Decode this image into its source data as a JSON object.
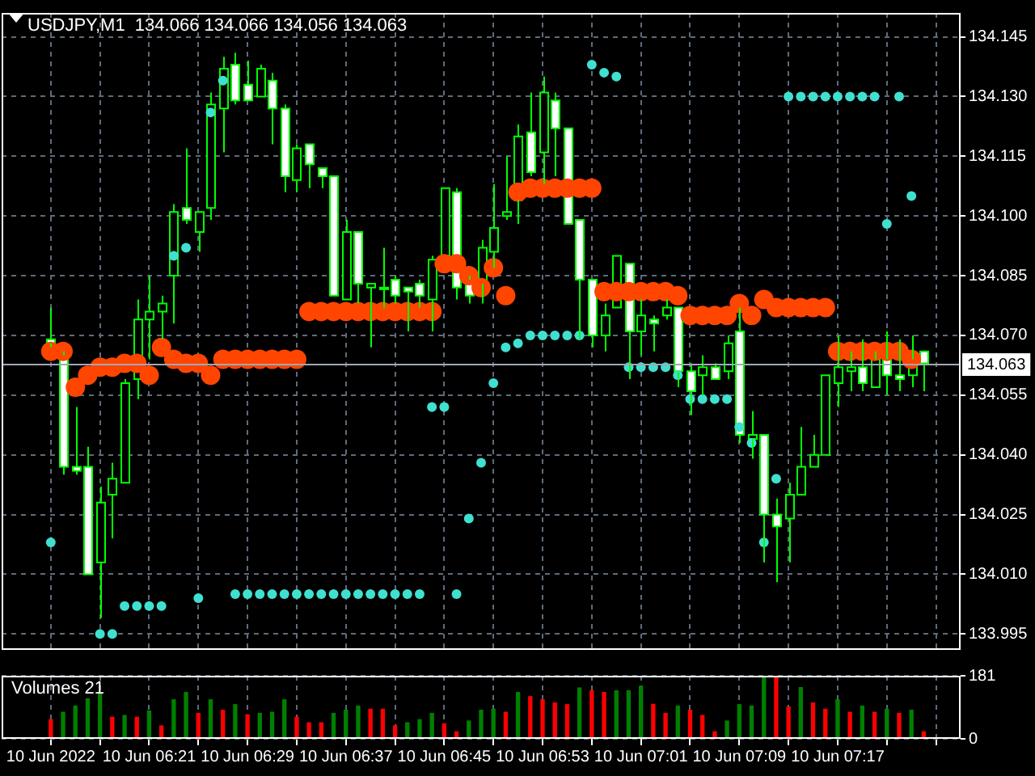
{
  "chart_data": [
    {
      "type": "candlestick",
      "title": "USDJPY,M1  134.066 134.066 134.056 134.063",
      "x": [
        "2022-06-10T06:13",
        "2022-06-10T06:14",
        "2022-06-10T06:15",
        "2022-06-10T06:16",
        "2022-06-10T06:17",
        "2022-06-10T06:18",
        "2022-06-10T06:19",
        "2022-06-10T06:20",
        "2022-06-10T06:21",
        "2022-06-10T06:22",
        "2022-06-10T06:23",
        "2022-06-10T06:24",
        "2022-06-10T06:25",
        "2022-06-10T06:26",
        "2022-06-10T06:27",
        "2022-06-10T06:28",
        "2022-06-10T06:29",
        "2022-06-10T06:30",
        "2022-06-10T06:31",
        "2022-06-10T06:32",
        "2022-06-10T06:33",
        "2022-06-10T06:34",
        "2022-06-10T06:35",
        "2022-06-10T06:36",
        "2022-06-10T06:37",
        "2022-06-10T06:38",
        "2022-06-10T06:39",
        "2022-06-10T06:40",
        "2022-06-10T06:41",
        "2022-06-10T06:42",
        "2022-06-10T06:43",
        "2022-06-10T06:44",
        "2022-06-10T06:45",
        "2022-06-10T06:46",
        "2022-06-10T06:47",
        "2022-06-10T06:48",
        "2022-06-10T06:49",
        "2022-06-10T06:50",
        "2022-06-10T06:51",
        "2022-06-10T06:52",
        "2022-06-10T06:53",
        "2022-06-10T06:54",
        "2022-06-10T06:55",
        "2022-06-10T06:56",
        "2022-06-10T06:57",
        "2022-06-10T06:58",
        "2022-06-10T06:59",
        "2022-06-10T07:00",
        "2022-06-10T07:01",
        "2022-06-10T07:02",
        "2022-06-10T07:03",
        "2022-06-10T07:04",
        "2022-06-10T07:05",
        "2022-06-10T07:06",
        "2022-06-10T07:07",
        "2022-06-10T07:08",
        "2022-06-10T07:09",
        "2022-06-10T07:10",
        "2022-06-10T07:11",
        "2022-06-10T07:12",
        "2022-06-10T07:13",
        "2022-06-10T07:14",
        "2022-06-10T07:15",
        "2022-06-10T07:16",
        "2022-06-10T07:17",
        "2022-06-10T07:18",
        "2022-06-10T07:19",
        "2022-06-10T07:20",
        "2022-06-10T07:21",
        "2022-06-10T07:22",
        "2022-06-10T07:23",
        "2022-06-10T07:24"
      ],
      "ohlc": [
        [
          134.069,
          134.077,
          134.067,
          134.068
        ],
        [
          134.065,
          134.066,
          134.035,
          134.037
        ],
        [
          134.037,
          134.052,
          134.035,
          134.036
        ],
        [
          134.037,
          134.042,
          134.01,
          134.01
        ],
        [
          134.013,
          134.032,
          133.999,
          134.028
        ],
        [
          134.03,
          134.038,
          134.019,
          134.034
        ],
        [
          134.033,
          134.059,
          134.033,
          134.058
        ],
        [
          134.059,
          134.079,
          134.054,
          134.074
        ],
        [
          134.074,
          134.085,
          134.064,
          134.076
        ],
        [
          134.076,
          134.08,
          134.069,
          134.078
        ],
        [
          134.085,
          134.103,
          134.073,
          134.101
        ],
        [
          134.102,
          134.117,
          134.098,
          134.099
        ],
        [
          134.096,
          134.101,
          134.091,
          134.101
        ],
        [
          134.102,
          134.131,
          134.099,
          134.128
        ],
        [
          134.127,
          134.14,
          134.116,
          134.137
        ],
        [
          134.138,
          134.141,
          134.128,
          134.129
        ],
        [
          134.133,
          134.139,
          134.129,
          134.129
        ],
        [
          134.13,
          134.138,
          134.13,
          134.137
        ],
        [
          134.134,
          134.136,
          134.118,
          134.127
        ],
        [
          134.127,
          134.128,
          134.106,
          134.11
        ],
        [
          134.109,
          134.118,
          134.106,
          134.117
        ],
        [
          134.118,
          134.118,
          134.107,
          134.113
        ],
        [
          134.112,
          134.112,
          134.107,
          134.11
        ],
        [
          134.11,
          134.11,
          134.08,
          134.08
        ],
        [
          134.079,
          134.099,
          134.079,
          134.096
        ],
        [
          134.096,
          134.096,
          134.078,
          134.083
        ],
        [
          134.082,
          134.083,
          134.067,
          134.083
        ],
        [
          134.082,
          134.092,
          134.077,
          134.082
        ],
        [
          134.084,
          134.085,
          134.078,
          134.08
        ],
        [
          134.082,
          134.082,
          134.071,
          134.081
        ],
        [
          134.083,
          134.084,
          134.077,
          134.08
        ],
        [
          134.079,
          134.09,
          134.071,
          134.089
        ],
        [
          134.09,
          134.107,
          134.09,
          134.107
        ],
        [
          134.106,
          134.107,
          134.079,
          134.082
        ],
        [
          134.084,
          134.085,
          134.078,
          134.08
        ],
        [
          134.083,
          134.094,
          134.078,
          134.092
        ],
        [
          134.091,
          134.108,
          134.087,
          134.097
        ],
        [
          134.1,
          134.115,
          134.099,
          134.101
        ],
        [
          134.104,
          134.123,
          134.098,
          134.12
        ],
        [
          134.121,
          134.131,
          134.11,
          134.111
        ],
        [
          134.116,
          134.135,
          134.108,
          134.131
        ],
        [
          134.129,
          134.131,
          134.11,
          134.122
        ],
        [
          134.122,
          134.122,
          134.098,
          134.098
        ],
        [
          134.099,
          134.099,
          134.069,
          134.084
        ],
        [
          134.084,
          134.084,
          134.067,
          134.07
        ],
        [
          134.07,
          134.078,
          134.066,
          134.075
        ],
        [
          134.077,
          134.09,
          134.077,
          134.09
        ],
        [
          134.088,
          134.088,
          134.059,
          134.071
        ],
        [
          134.071,
          134.079,
          134.065,
          134.075
        ],
        [
          134.074,
          134.075,
          134.066,
          134.073
        ],
        [
          134.075,
          134.079,
          134.074,
          134.077
        ],
        [
          134.077,
          134.077,
          134.057,
          134.061
        ],
        [
          134.061,
          134.063,
          134.05,
          134.056
        ],
        [
          134.06,
          134.065,
          134.055,
          134.062
        ],
        [
          134.062,
          134.063,
          134.059,
          134.059
        ],
        [
          134.061,
          134.07,
          134.059,
          134.068
        ],
        [
          134.071,
          134.077,
          134.043,
          134.045
        ],
        [
          134.044,
          134.051,
          134.039,
          134.045
        ],
        [
          134.045,
          134.045,
          134.013,
          134.025
        ],
        [
          134.025,
          134.029,
          134.008,
          134.022
        ],
        [
          134.024,
          134.033,
          134.013,
          134.03
        ],
        [
          134.03,
          134.047,
          134.03,
          134.037
        ],
        [
          134.037,
          134.045,
          134.037,
          134.04
        ],
        [
          134.04,
          134.06,
          134.04,
          134.06
        ],
        [
          134.058,
          134.07,
          134.052,
          134.062
        ],
        [
          134.061,
          134.066,
          134.056,
          134.062
        ],
        [
          134.062,
          134.069,
          134.056,
          134.058
        ],
        [
          134.057,
          134.066,
          134.057,
          134.064
        ],
        [
          134.064,
          134.071,
          134.055,
          134.06
        ],
        [
          134.06,
          134.069,
          134.056,
          134.059
        ],
        [
          134.06,
          134.07,
          134.057,
          134.064
        ],
        [
          134.066,
          134.066,
          134.056,
          134.063
        ]
      ],
      "series": [
        {
          "type": "scatter",
          "color": "#ff4500",
          "values": [
            134.066,
            134.066,
            134.057,
            134.06,
            134.062,
            134.062,
            134.063,
            134.063,
            134.06,
            134.067,
            134.064,
            134.063,
            134.063,
            134.06,
            134.064,
            134.064,
            134.064,
            134.064,
            134.064,
            134.064,
            134.064,
            134.076,
            134.076,
            134.076,
            134.076,
            134.076,
            134.076,
            134.076,
            134.076,
            134.076,
            134.076,
            134.076,
            134.088,
            134.088,
            134.085,
            134.082,
            134.087,
            134.08,
            134.106,
            134.107,
            134.107,
            134.107,
            134.107,
            134.107,
            134.107,
            134.081,
            134.081,
            134.081,
            134.081,
            134.081,
            134.081,
            134.08,
            134.075,
            134.075,
            134.075,
            134.075,
            134.078,
            134.075,
            134.079,
            134.077,
            134.077,
            134.077,
            134.077,
            134.077,
            134.066,
            134.066,
            134.066,
            134.066,
            134.066,
            134.066,
            134.064,
            null
          ]
        },
        {
          "type": "scatter",
          "color": "#40e0d0",
          "values": [
            134.018,
            null,
            null,
            null,
            133.995,
            133.995,
            134.002,
            134.002,
            134.002,
            134.002,
            134.09,
            134.092,
            134.004,
            134.126,
            134.134,
            134.005,
            134.005,
            134.005,
            134.005,
            134.005,
            134.005,
            134.005,
            134.005,
            134.005,
            134.005,
            134.005,
            134.005,
            134.005,
            134.005,
            134.005,
            134.005,
            134.052,
            134.052,
            134.005,
            134.024,
            134.038,
            134.058,
            134.067,
            134.068,
            134.07,
            134.07,
            134.07,
            134.07,
            134.07,
            134.138,
            134.136,
            134.135,
            134.062,
            134.062,
            134.062,
            134.062,
            134.06,
            134.054,
            134.054,
            134.054,
            134.054,
            134.047,
            134.043,
            134.018,
            134.034,
            134.13,
            134.13,
            134.13,
            134.13,
            134.13,
            134.13,
            134.13,
            134.13,
            134.098,
            134.13,
            134.105,
            null
          ]
        }
      ],
      "marker": "circle",
      "xlim": [
        "2022-06-10T06:09",
        "2022-06-10T07:27"
      ],
      "xticks": [
        {
          "value": "2022-06-10T06:13",
          "label": null
        },
        {
          "value": "2022-06-10T06:17",
          "label": null
        },
        {
          "value": "2022-06-10T06:21",
          "label": null
        },
        {
          "value": "2022-06-10T06:25",
          "label": null
        },
        {
          "value": "2022-06-10T06:29",
          "label": null
        },
        {
          "value": "2022-06-10T06:33",
          "label": null
        },
        {
          "value": "2022-06-10T06:37",
          "label": null
        },
        {
          "value": "2022-06-10T06:41",
          "label": null
        },
        {
          "value": "2022-06-10T06:45",
          "label": null
        },
        {
          "value": "2022-06-10T06:49",
          "label": null
        },
        {
          "value": "2022-06-10T06:53",
          "label": null
        },
        {
          "value": "2022-06-10T06:57",
          "label": null
        },
        {
          "value": "2022-06-10T07:01",
          "label": null
        },
        {
          "value": "2022-06-10T07:05",
          "label": null
        },
        {
          "value": "2022-06-10T07:09",
          "label": null
        },
        {
          "value": "2022-06-10T07:13",
          "label": null
        },
        {
          "value": "2022-06-10T07:17",
          "label": null
        },
        {
          "value": "2022-06-10T07:21",
          "label": null
        },
        {
          "value": "2022-06-10T07:25",
          "label": null
        }
      ],
      "ylim": [
        133.991,
        134.151
      ],
      "yticks": [
        133.995,
        {
          "value": 134.01,
          "label": "134.010"
        },
        134.025,
        {
          "value": 134.04,
          "label": "134.040"
        },
        134.055,
        {
          "value": 134.07,
          "label": "134.070"
        },
        134.085,
        {
          "value": 134.1,
          "label": "134.100"
        },
        134.115,
        {
          "value": 134.13,
          "label": "134.130"
        },
        134.145
      ],
      "ref_lines": [
        {
          "axis": "y",
          "value": 134.063,
          "label": "134.063"
        }
      ],
      "grid": true,
      "tick_labels": "y"
    },
    {
      "type": "bar",
      "title": "Volumes 21",
      "x": [
        "2022-06-10T06:13",
        "2022-06-10T06:14",
        "2022-06-10T06:15",
        "2022-06-10T06:16",
        "2022-06-10T06:17",
        "2022-06-10T06:18",
        "2022-06-10T06:19",
        "2022-06-10T06:20",
        "2022-06-10T06:21",
        "2022-06-10T06:22",
        "2022-06-10T06:23",
        "2022-06-10T06:24",
        "2022-06-10T06:25",
        "2022-06-10T06:26",
        "2022-06-10T06:27",
        "2022-06-10T06:28",
        "2022-06-10T06:29",
        "2022-06-10T06:30",
        "2022-06-10T06:31",
        "2022-06-10T06:32",
        "2022-06-10T06:33",
        "2022-06-10T06:34",
        "2022-06-10T06:35",
        "2022-06-10T06:36",
        "2022-06-10T06:37",
        "2022-06-10T06:38",
        "2022-06-10T06:39",
        "2022-06-10T06:40",
        "2022-06-10T06:41",
        "2022-06-10T06:42",
        "2022-06-10T06:43",
        "2022-06-10T06:44",
        "2022-06-10T06:45",
        "2022-06-10T06:46",
        "2022-06-10T06:47",
        "2022-06-10T06:48",
        "2022-06-10T06:49",
        "2022-06-10T06:50",
        "2022-06-10T06:51",
        "2022-06-10T06:52",
        "2022-06-10T06:53",
        "2022-06-10T06:54",
        "2022-06-10T06:55",
        "2022-06-10T06:56",
        "2022-06-10T06:57",
        "2022-06-10T06:58",
        "2022-06-10T06:59",
        "2022-06-10T07:00",
        "2022-06-10T07:01",
        "2022-06-10T07:02",
        "2022-06-10T07:03",
        "2022-06-10T07:04",
        "2022-06-10T07:05",
        "2022-06-10T07:06",
        "2022-06-10T07:07",
        "2022-06-10T07:08",
        "2022-06-10T07:09",
        "2022-06-10T07:10",
        "2022-06-10T07:11",
        "2022-06-10T07:12",
        "2022-06-10T07:13",
        "2022-06-10T07:14",
        "2022-06-10T07:15",
        "2022-06-10T07:16",
        "2022-06-10T07:17",
        "2022-06-10T07:18",
        "2022-06-10T07:19",
        "2022-06-10T07:20",
        "2022-06-10T07:21",
        "2022-06-10T07:22",
        "2022-06-10T07:23",
        "2022-06-10T07:24"
      ],
      "values": [
        55,
        76,
        94,
        115,
        131,
        62,
        67,
        62,
        80,
        37,
        112,
        133,
        73,
        112,
        82,
        98,
        69,
        73,
        76,
        112,
        62,
        46,
        46,
        73,
        82,
        94,
        85,
        85,
        37,
        46,
        55,
        73,
        43,
        20,
        51,
        82,
        85,
        76,
        133,
        121,
        112,
        103,
        98,
        146,
        138,
        133,
        138,
        138,
        151,
        99,
        73,
        94,
        82,
        67,
        20,
        51,
        98,
        94,
        181,
        181,
        91,
        147,
        103,
        85,
        112,
        76,
        94,
        76,
        85,
        73,
        82,
        20
      ],
      "colors": [
        "#ff0000",
        "#008000",
        "#008000",
        "#008000",
        "#008000",
        "#ff0000",
        "#008000",
        "#ff0000",
        "#008000",
        "#ff0000",
        "#008000",
        "#008000",
        "#ff0000",
        "#008000",
        "#ff0000",
        "#008000",
        "#ff0000",
        "#008000",
        "#008000",
        "#008000",
        "#ff0000",
        "#ff0000",
        "#ff0000",
        "#008000",
        "#008000",
        "#008000",
        "#ff0000",
        "#ff0000",
        "#ff0000",
        "#008000",
        "#008000",
        "#008000",
        "#ff0000",
        "#ff0000",
        "#008000",
        "#008000",
        "#008000",
        "#ff0000",
        "#008000",
        "#ff0000",
        "#ff0000",
        "#ff0000",
        "#ff0000",
        "#008000",
        "#ff0000",
        "#ff0000",
        "#008000",
        "#008000",
        "#008000",
        "#ff0000",
        "#ff0000",
        "#008000",
        "#ff0000",
        "#ff0000",
        "#ff0000",
        "#008000",
        "#008000",
        "#008000",
        "#008000",
        "#ff0000",
        "#ff0000",
        "#008000",
        "#ff0000",
        "#ff0000",
        "#008000",
        "#ff0000",
        "#008000",
        "#ff0000",
        "#008000",
        "#ff0000",
        "#008000",
        "#ff0000"
      ],
      "xlim": [
        "2022-06-10T06:09",
        "2022-06-10T07:27"
      ],
      "xticks": [
        {
          "value": "2022-06-10T06:13",
          "label": "10 Jun 2022"
        },
        {
          "value": "2022-06-10T06:17",
          "label": null
        },
        {
          "value": "2022-06-10T06:21",
          "label": "10 Jun 06:21"
        },
        {
          "value": "2022-06-10T06:25",
          "label": null
        },
        {
          "value": "2022-06-10T06:29",
          "label": "10 Jun 06:29"
        },
        {
          "value": "2022-06-10T06:33",
          "label": null
        },
        {
          "value": "2022-06-10T06:37",
          "label": "10 Jun 06:37"
        },
        {
          "value": "2022-06-10T06:41",
          "label": null
        },
        {
          "value": "2022-06-10T06:45",
          "label": "10 Jun 06:45"
        },
        {
          "value": "2022-06-10T06:49",
          "label": null
        },
        {
          "value": "2022-06-10T06:53",
          "label": "10 Jun 06:53"
        },
        {
          "value": "2022-06-10T06:57",
          "label": null
        },
        {
          "value": "2022-06-10T07:01",
          "label": "10 Jun 07:01"
        },
        {
          "value": "2022-06-10T07:05",
          "label": null
        },
        {
          "value": "2022-06-10T07:09",
          "label": "10 Jun 07:09"
        },
        {
          "value": "2022-06-10T07:13",
          "label": null
        },
        {
          "value": "2022-06-10T07:17",
          "label": "10 Jun 07:17"
        },
        {
          "value": "2022-06-10T07:21",
          "label": null
        },
        {
          "value": "2022-06-10T07:25",
          "label": null
        }
      ],
      "ylim": [
        0,
        181
      ],
      "yticks": [
        0,
        181
      ],
      "grid": true
    }
  ]
}
